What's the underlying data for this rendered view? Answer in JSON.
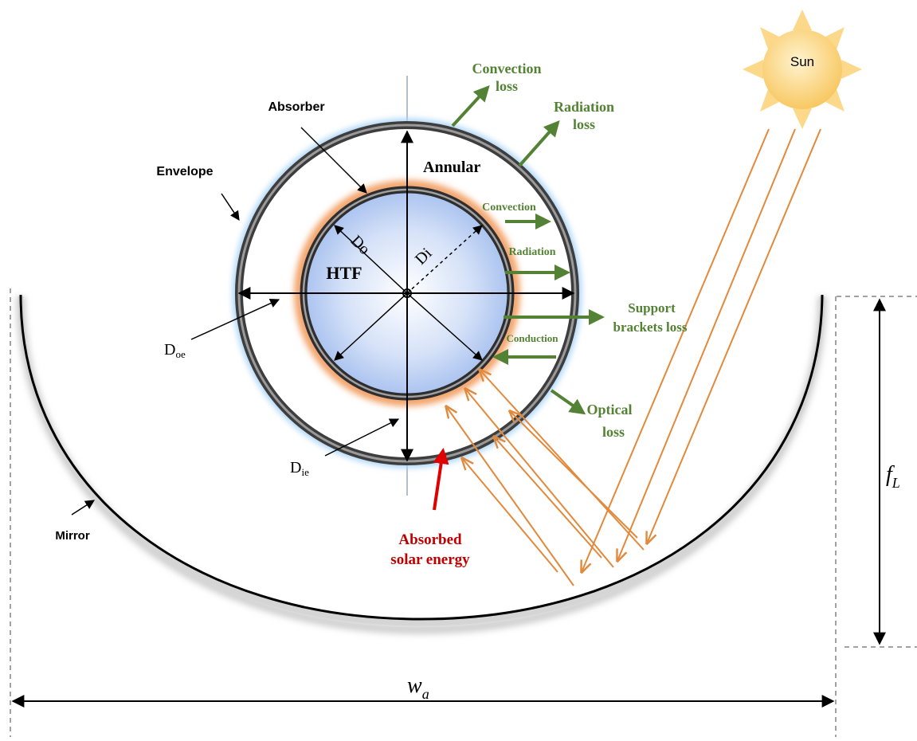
{
  "labels": {
    "convection_loss_1": "Convection",
    "convection_loss_2": "loss",
    "radiation_loss_1": "Radiation",
    "radiation_loss_2": "loss",
    "absorber": "Absorber",
    "annular": "Annular",
    "envelope": "Envelope",
    "convection": "Convection",
    "radiation": "Radiation",
    "support_1": "Support",
    "support_2": "brackets loss",
    "conduction": "Conduction",
    "optical_1": "Optical",
    "optical_2": "loss",
    "htf": "HTF",
    "do": "Do",
    "di": "Di",
    "doe_main": "D",
    "doe_sub": "oe",
    "die_main": "D",
    "die_sub": "ie",
    "mirror": "Mirror",
    "absorbed_1": "Absorbed",
    "absorbed_2": "solar energy",
    "sun": "Sun",
    "fl_main": "f",
    "fl_sub": "L",
    "wa_main": "w",
    "wa_sub": "a"
  },
  "colors": {
    "loss_green": "#548235",
    "ray_orange": "#e2893c",
    "sun_fill": "#fcd88a",
    "absorbed_red": "#c00000",
    "htf_blue": "#b8cdf2"
  }
}
